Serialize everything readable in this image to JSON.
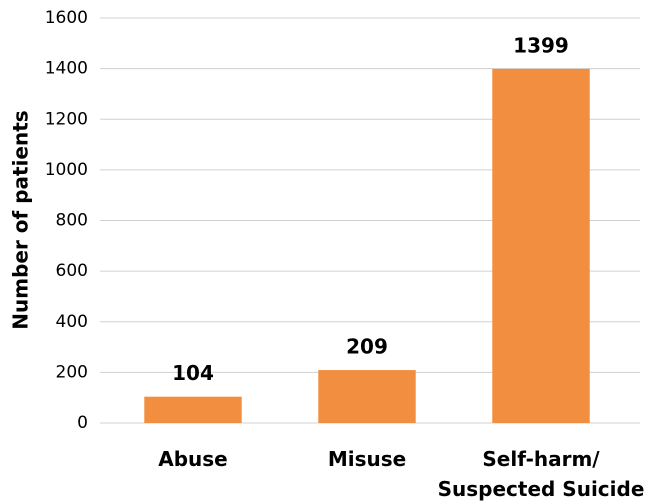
{
  "chart_data": {
    "type": "bar",
    "y_axis_label": "Number of patients",
    "categories": [
      "Abuse",
      "Misuse",
      "Self-harm/\nSuspected Suicide"
    ],
    "values": [
      104,
      209,
      1399
    ],
    "color": "#f28e3f",
    "ylim": [
      0,
      1600
    ],
    "yticks": [
      0,
      200,
      400,
      600,
      800,
      1000,
      1200,
      1400,
      1600
    ],
    "grid": true
  }
}
